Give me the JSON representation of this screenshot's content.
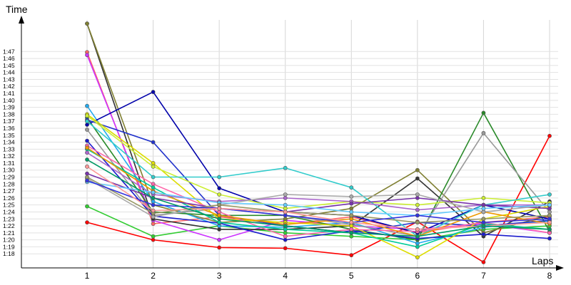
{
  "chart_data": {
    "type": "line",
    "xlabel": "Laps",
    "ylabel": "Time",
    "x": [
      1,
      2,
      3,
      4,
      5,
      6,
      7,
      8
    ],
    "y_tick_labels": [
      "1:18",
      "1:19",
      "1:20",
      "1:21",
      "1:22",
      "1:23",
      "1:24",
      "1:25",
      "1:26",
      "1:27",
      "1:28",
      "1:29",
      "1:30",
      "1:31",
      "1:32",
      "1:33",
      "1:34",
      "1:35",
      "1:36",
      "1:37",
      "1:38",
      "1:39",
      "1:40",
      "1:41",
      "1:42",
      "1:43",
      "1:44",
      "1:45",
      "1:46",
      "1:47"
    ],
    "y_unit": "seconds (lap time)",
    "ylim": [
      76.6,
      111
    ],
    "grid": true,
    "series": [
      {
        "color": "#ff0000",
        "values": [
          82.5,
          80.0,
          78.9,
          78.8,
          77.8,
          82.6,
          76.8,
          94.9
        ]
      },
      {
        "color": "#33cc33",
        "values": [
          84.8,
          80.5,
          82.0,
          81.0,
          80.5,
          80.0,
          81.5,
          82.0
        ]
      },
      {
        "color": "#ff6666",
        "values": [
          106.9,
          82.3,
          83.3,
          82.2,
          83.3,
          81.0,
          82.5,
          83.3
        ]
      },
      {
        "color": "#cc33ff",
        "values": [
          106.5,
          82.8,
          80.0,
          82.8,
          82.0,
          81.5,
          82.3,
          81.0
        ]
      },
      {
        "color": "#333333",
        "values": [
          111.0,
          83.0,
          81.5,
          81.5,
          82.0,
          88.8,
          80.5,
          85.5
        ]
      },
      {
        "color": "#808033",
        "values": [
          111.0,
          85.0,
          82.5,
          83.0,
          84.5,
          90.0,
          81.0,
          83.5
        ]
      },
      {
        "color": "#22aaee",
        "values": [
          99.2,
          85.5,
          82.0,
          81.8,
          82.5,
          79.5,
          81.8,
          82.7
        ]
      },
      {
        "color": "#2a8a2a",
        "values": [
          97.5,
          84.0,
          83.5,
          83.5,
          81.5,
          80.0,
          98.2,
          81.2
        ]
      },
      {
        "color": "#999999",
        "values": [
          95.8,
          83.5,
          84.5,
          83.5,
          82.2,
          80.5,
          95.3,
          84.0
        ]
      },
      {
        "color": "#1a1acc",
        "values": [
          94.2,
          83.4,
          82.4,
          80.0,
          81.3,
          80.2,
          80.8,
          80.2
        ]
      },
      {
        "color": "#0000aa",
        "values": [
          96.5,
          101.2,
          87.4,
          84.0,
          83.5,
          81.0,
          85.0,
          83.0
        ]
      },
      {
        "color": "#2233cc",
        "values": [
          97.2,
          94.0,
          83.5,
          82.0,
          81.0,
          82.5,
          82.0,
          82.8
        ]
      },
      {
        "color": "#dddd00",
        "values": [
          98.0,
          91.0,
          83.0,
          82.5,
          82.0,
          77.5,
          83.0,
          84.8
        ]
      },
      {
        "color": "#ccee33",
        "values": [
          97.8,
          90.5,
          86.5,
          84.5,
          85.5,
          85.0,
          86.0,
          85.3
        ]
      },
      {
        "color": "#33cccc",
        "values": [
          97.0,
          89.0,
          89.0,
          90.3,
          87.5,
          80.5,
          85.0,
          86.5
        ]
      },
      {
        "color": "#ff66aa",
        "values": [
          93.5,
          88.0,
          84.0,
          80.5,
          81.5,
          81.2,
          82.5,
          81.0
        ]
      },
      {
        "color": "#00cc99",
        "values": [
          93.0,
          87.5,
          82.5,
          81.5,
          81.0,
          79.0,
          82.3,
          81.5
        ]
      },
      {
        "color": "#ee9900",
        "values": [
          93.2,
          87.0,
          83.5,
          82.2,
          83.0,
          80.5,
          84.0,
          82.3
        ]
      },
      {
        "color": "#aa66cc",
        "values": [
          92.5,
          86.5,
          85.5,
          86.0,
          85.5,
          84.3,
          85.0,
          85.0
        ]
      },
      {
        "color": "#7733aa",
        "values": [
          89.5,
          86.0,
          84.5,
          84.0,
          85.2,
          86.0,
          85.0,
          84.5
        ]
      },
      {
        "color": "#aaaaaa",
        "values": [
          88.8,
          83.3,
          85.0,
          86.5,
          86.2,
          86.5,
          84.0,
          85.0
        ]
      },
      {
        "color": "#66ccff",
        "values": [
          88.3,
          86.8,
          85.3,
          85.0,
          84.0,
          83.5,
          84.5,
          85.0
        ]
      },
      {
        "color": "#999966",
        "values": [
          89.0,
          83.8,
          85.0,
          84.0,
          83.5,
          82.5,
          83.0,
          83.5
        ]
      },
      {
        "color": "#3333dd",
        "values": [
          88.5,
          85.0,
          84.5,
          83.5,
          82.5,
          83.5,
          82.5,
          83.0
        ]
      },
      {
        "color": "#ff9999",
        "values": [
          90.5,
          84.2,
          84.5,
          84.0,
          82.5,
          81.5,
          82.0,
          82.5
        ]
      },
      {
        "color": "#009966",
        "values": [
          91.5,
          86.0,
          83.0,
          82.0,
          81.0,
          80.5,
          82.0,
          81.5
        ]
      }
    ]
  }
}
